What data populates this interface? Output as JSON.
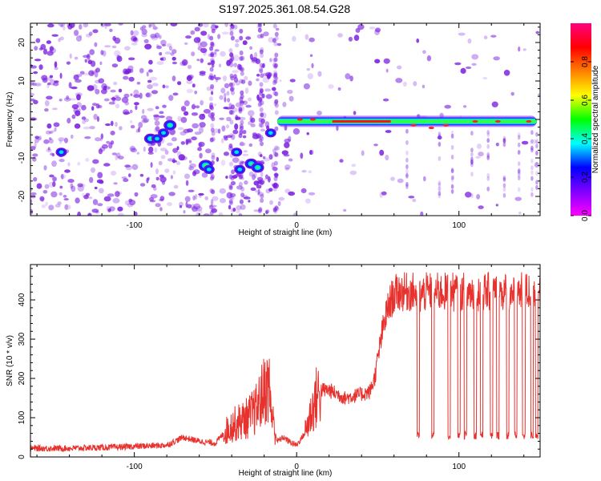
{
  "title": "S197.2025.361.08.54.G28",
  "colors": {
    "spectrogram_point": "#7a1fe0",
    "snr_line": "#e8322e",
    "axis": "#000000"
  },
  "chart_data": [
    {
      "type": "heatmap",
      "name": "spectrogram",
      "xlabel": "Height of straight line (km)",
      "ylabel": "Frequency (Hz)",
      "xlim": [
        -164,
        150
      ],
      "ylim": [
        -25,
        25
      ],
      "x_ticks": [
        -100,
        0,
        100
      ],
      "y_ticks": [
        -20,
        -10,
        0,
        10,
        20
      ],
      "colorbar": {
        "label": "Normalized spectral amplitude",
        "range": [
          0,
          1
        ],
        "ticks": [
          0.0,
          0.2,
          0.4,
          0.6,
          0.8
        ],
        "colormap": [
          "#ff00ff",
          "#8000ff",
          "#0000ff",
          "#00ffff",
          "#00ff00",
          "#ffff00",
          "#ff8000",
          "#ff0000",
          "#ff0080"
        ]
      },
      "strong_features": [
        {
          "x": [
            0,
            148
          ],
          "y": -0.5,
          "description": "horizontal band near 0 Hz"
        },
        {
          "x": [
            -90,
            -78
          ],
          "y": [
            -5,
            0
          ],
          "description": "short rising trace"
        },
        {
          "x": [
            -58,
            -52
          ],
          "y": -12,
          "description": "isolated patch"
        },
        {
          "x": [
            -38,
            -22
          ],
          "y": [
            -9,
            -13
          ],
          "description": "falling trace"
        },
        {
          "x": [
            -17,
            -14
          ],
          "y": [
            -4,
            -1
          ],
          "description": "short trace"
        }
      ]
    },
    {
      "type": "line",
      "name": "snr",
      "xlabel": "Height of straight line (km)",
      "ylabel": "SNR (10 * v/v)",
      "xlim": [
        -164,
        150
      ],
      "ylim": [
        0,
        490
      ],
      "x_ticks": [
        -100,
        0,
        100
      ],
      "y_ticks": [
        0,
        100,
        200,
        300,
        400
      ],
      "series": [
        {
          "x": [
            -164,
            -140,
            -110,
            -80,
            -70,
            -60,
            -50,
            -45,
            -40,
            -35,
            -30,
            -25,
            -20,
            -17,
            -15,
            -12,
            -8,
            -5,
            0,
            5,
            8,
            12,
            15,
            20,
            30,
            40,
            45,
            48,
            50,
            52,
            55,
            58,
            62,
            70,
            73,
            75,
            80,
            85,
            90,
            95,
            100,
            110,
            120,
            130,
            140,
            150
          ],
          "values": [
            22,
            22,
            25,
            30,
            50,
            40,
            35,
            60,
            80,
            90,
            100,
            120,
            170,
            180,
            100,
            40,
            50,
            40,
            30,
            60,
            100,
            150,
            170,
            170,
            150,
            160,
            165,
            200,
            250,
            300,
            360,
            400,
            420,
            420,
            420,
            410,
            420,
            420,
            420,
            420,
            420,
            420,
            420,
            420,
            420,
            420
          ],
          "dropouts_x": [
            75,
            84,
            94,
            100,
            104,
            110,
            114,
            120,
            124,
            130,
            135,
            140,
            145,
            148
          ],
          "dropout_value": 55
        }
      ]
    }
  ]
}
